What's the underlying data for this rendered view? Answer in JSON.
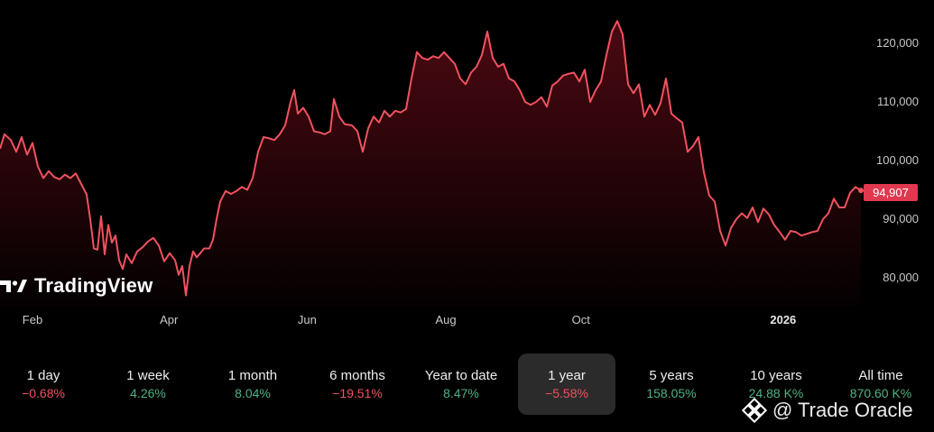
{
  "brand": {
    "logo_text": "TradingView",
    "watermark_text": "@ Trade Oracle"
  },
  "colors": {
    "background": "#000000",
    "line": "#f0525f",
    "negative": "#f0525f",
    "positive": "#4eb284",
    "price_tag": "#e0384e"
  },
  "price_tag": "94,907",
  "chart_data": {
    "type": "area",
    "y_ticks": [
      80000,
      90000,
      100000,
      110000,
      120000
    ],
    "y_tick_labels": [
      "80,000",
      "90,000",
      "100,000",
      "110,000",
      "120,000"
    ],
    "ylim": [
      75000,
      125500
    ],
    "x_ticks": [
      {
        "label": "Feb",
        "t": 0.0,
        "bold": false
      },
      {
        "label": "Apr",
        "t": 0.1658,
        "bold": false
      },
      {
        "label": "Jun",
        "t": 0.3337,
        "bold": false
      },
      {
        "label": "Aug",
        "t": 0.5022,
        "bold": false
      },
      {
        "label": "Oct",
        "t": 0.6664,
        "bold": false
      },
      {
        "label": "2026",
        "t": 0.9121,
        "bold": true
      }
    ],
    "grid": false,
    "legend": "none",
    "last_value": 94907,
    "series": [
      {
        "values": [
          [
            0.0,
            102000
          ],
          [
            0.005,
            104500
          ],
          [
            0.012,
            103500
          ],
          [
            0.018,
            101500
          ],
          [
            0.024,
            104000
          ],
          [
            0.03,
            101000
          ],
          [
            0.036,
            103000
          ],
          [
            0.042,
            99000
          ],
          [
            0.048,
            97000
          ],
          [
            0.054,
            98200
          ],
          [
            0.06,
            97200
          ],
          [
            0.066,
            96800
          ],
          [
            0.072,
            97600
          ],
          [
            0.078,
            97000
          ],
          [
            0.084,
            97800
          ],
          [
            0.09,
            96000
          ],
          [
            0.096,
            94200
          ],
          [
            0.1,
            90000
          ],
          [
            0.104,
            85000
          ],
          [
            0.108,
            84800
          ],
          [
            0.112,
            90500
          ],
          [
            0.116,
            84000
          ],
          [
            0.12,
            89000
          ],
          [
            0.124,
            86000
          ],
          [
            0.128,
            87200
          ],
          [
            0.132,
            83000
          ],
          [
            0.136,
            81500
          ],
          [
            0.14,
            84000
          ],
          [
            0.146,
            82500
          ],
          [
            0.152,
            84500
          ],
          [
            0.158,
            85200
          ],
          [
            0.164,
            86200
          ],
          [
            0.17,
            86800
          ],
          [
            0.176,
            85500
          ],
          [
            0.182,
            82800
          ],
          [
            0.188,
            84200
          ],
          [
            0.194,
            83000
          ],
          [
            0.198,
            80500
          ],
          [
            0.202,
            82000
          ],
          [
            0.206,
            77000
          ],
          [
            0.21,
            82000
          ],
          [
            0.214,
            84500
          ],
          [
            0.218,
            83500
          ],
          [
            0.222,
            84200
          ],
          [
            0.226,
            85000
          ],
          [
            0.232,
            85000
          ],
          [
            0.236,
            86500
          ],
          [
            0.24,
            90000
          ],
          [
            0.244,
            93000
          ],
          [
            0.25,
            94800
          ],
          [
            0.256,
            94300
          ],
          [
            0.262,
            94800
          ],
          [
            0.268,
            95500
          ],
          [
            0.274,
            95000
          ],
          [
            0.28,
            97000
          ],
          [
            0.286,
            101500
          ],
          [
            0.292,
            104000
          ],
          [
            0.298,
            103800
          ],
          [
            0.304,
            103500
          ],
          [
            0.31,
            104500
          ],
          [
            0.316,
            106000
          ],
          [
            0.322,
            110000
          ],
          [
            0.326,
            112000
          ],
          [
            0.33,
            108000
          ],
          [
            0.336,
            109000
          ],
          [
            0.342,
            107500
          ],
          [
            0.348,
            105000
          ],
          [
            0.354,
            104800
          ],
          [
            0.36,
            104500
          ],
          [
            0.366,
            105000
          ],
          [
            0.37,
            110500
          ],
          [
            0.376,
            107500
          ],
          [
            0.382,
            106200
          ],
          [
            0.39,
            106000
          ],
          [
            0.396,
            105000
          ],
          [
            0.402,
            101500
          ],
          [
            0.408,
            105500
          ],
          [
            0.414,
            107500
          ],
          [
            0.42,
            106500
          ],
          [
            0.426,
            108500
          ],
          [
            0.432,
            107500
          ],
          [
            0.438,
            108500
          ],
          [
            0.444,
            108200
          ],
          [
            0.45,
            108800
          ],
          [
            0.456,
            114000
          ],
          [
            0.462,
            118500
          ],
          [
            0.468,
            117500
          ],
          [
            0.474,
            117200
          ],
          [
            0.48,
            117800
          ],
          [
            0.486,
            117500
          ],
          [
            0.492,
            118500
          ],
          [
            0.498,
            117500
          ],
          [
            0.504,
            116500
          ],
          [
            0.51,
            114000
          ],
          [
            0.516,
            113000
          ],
          [
            0.522,
            115000
          ],
          [
            0.528,
            116000
          ],
          [
            0.534,
            118000
          ],
          [
            0.54,
            122000
          ],
          [
            0.546,
            117500
          ],
          [
            0.552,
            116000
          ],
          [
            0.558,
            116500
          ],
          [
            0.564,
            114000
          ],
          [
            0.57,
            113500
          ],
          [
            0.576,
            112000
          ],
          [
            0.582,
            110000
          ],
          [
            0.588,
            109500
          ],
          [
            0.594,
            110000
          ],
          [
            0.6,
            110800
          ],
          [
            0.606,
            109200
          ],
          [
            0.612,
            112800
          ],
          [
            0.618,
            113500
          ],
          [
            0.624,
            114500
          ],
          [
            0.63,
            114800
          ],
          [
            0.636,
            115000
          ],
          [
            0.642,
            113500
          ],
          [
            0.648,
            115500
          ],
          [
            0.654,
            110000
          ],
          [
            0.66,
            112000
          ],
          [
            0.666,
            113500
          ],
          [
            0.672,
            118000
          ],
          [
            0.678,
            122000
          ],
          [
            0.684,
            123800
          ],
          [
            0.69,
            121500
          ],
          [
            0.696,
            113000
          ],
          [
            0.702,
            111500
          ],
          [
            0.708,
            113000
          ],
          [
            0.714,
            107500
          ],
          [
            0.72,
            109500
          ],
          [
            0.726,
            107800
          ],
          [
            0.732,
            109800
          ],
          [
            0.738,
            114000
          ],
          [
            0.744,
            108000
          ],
          [
            0.75,
            107200
          ],
          [
            0.756,
            106500
          ],
          [
            0.762,
            101500
          ],
          [
            0.768,
            102500
          ],
          [
            0.774,
            104000
          ],
          [
            0.78,
            98000
          ],
          [
            0.786,
            94000
          ],
          [
            0.792,
            93000
          ],
          [
            0.798,
            88000
          ],
          [
            0.804,
            85500
          ],
          [
            0.81,
            88500
          ],
          [
            0.816,
            90000
          ],
          [
            0.822,
            91000
          ],
          [
            0.828,
            90200
          ],
          [
            0.834,
            92000
          ],
          [
            0.84,
            89500
          ],
          [
            0.846,
            91800
          ],
          [
            0.852,
            90800
          ],
          [
            0.858,
            89000
          ],
          [
            0.864,
            87800
          ],
          [
            0.87,
            86500
          ],
          [
            0.876,
            88000
          ],
          [
            0.882,
            87800
          ],
          [
            0.888,
            87200
          ],
          [
            0.894,
            87500
          ],
          [
            0.9,
            87800
          ],
          [
            0.906,
            88000
          ],
          [
            0.912,
            90000
          ],
          [
            0.918,
            91000
          ],
          [
            0.924,
            93500
          ],
          [
            0.93,
            92000
          ],
          [
            0.936,
            92000
          ],
          [
            0.942,
            94500
          ],
          [
            0.948,
            95500
          ],
          [
            0.954,
            94907
          ]
        ]
      }
    ]
  },
  "time_ranges": [
    {
      "label": "1 day",
      "value": "−0.68%",
      "trend": "neg",
      "selected": false
    },
    {
      "label": "1 week",
      "value": "4.26%",
      "trend": "pos",
      "selected": false
    },
    {
      "label": "1 month",
      "value": "8.04%",
      "trend": "pos",
      "selected": false
    },
    {
      "label": "6 months",
      "value": "−19.51%",
      "trend": "neg",
      "selected": false
    },
    {
      "label": "Year to date",
      "value": "8.47%",
      "trend": "pos",
      "selected": false
    },
    {
      "label": "1 year",
      "value": "−5.58%",
      "trend": "neg",
      "selected": true
    },
    {
      "label": "5 years",
      "value": "158.05%",
      "trend": "pos",
      "selected": false
    },
    {
      "label": "10 years",
      "value": "24.88 K%",
      "trend": "pos",
      "selected": false
    },
    {
      "label": "All time",
      "value": "870.60 K%",
      "trend": "pos",
      "selected": false
    }
  ]
}
